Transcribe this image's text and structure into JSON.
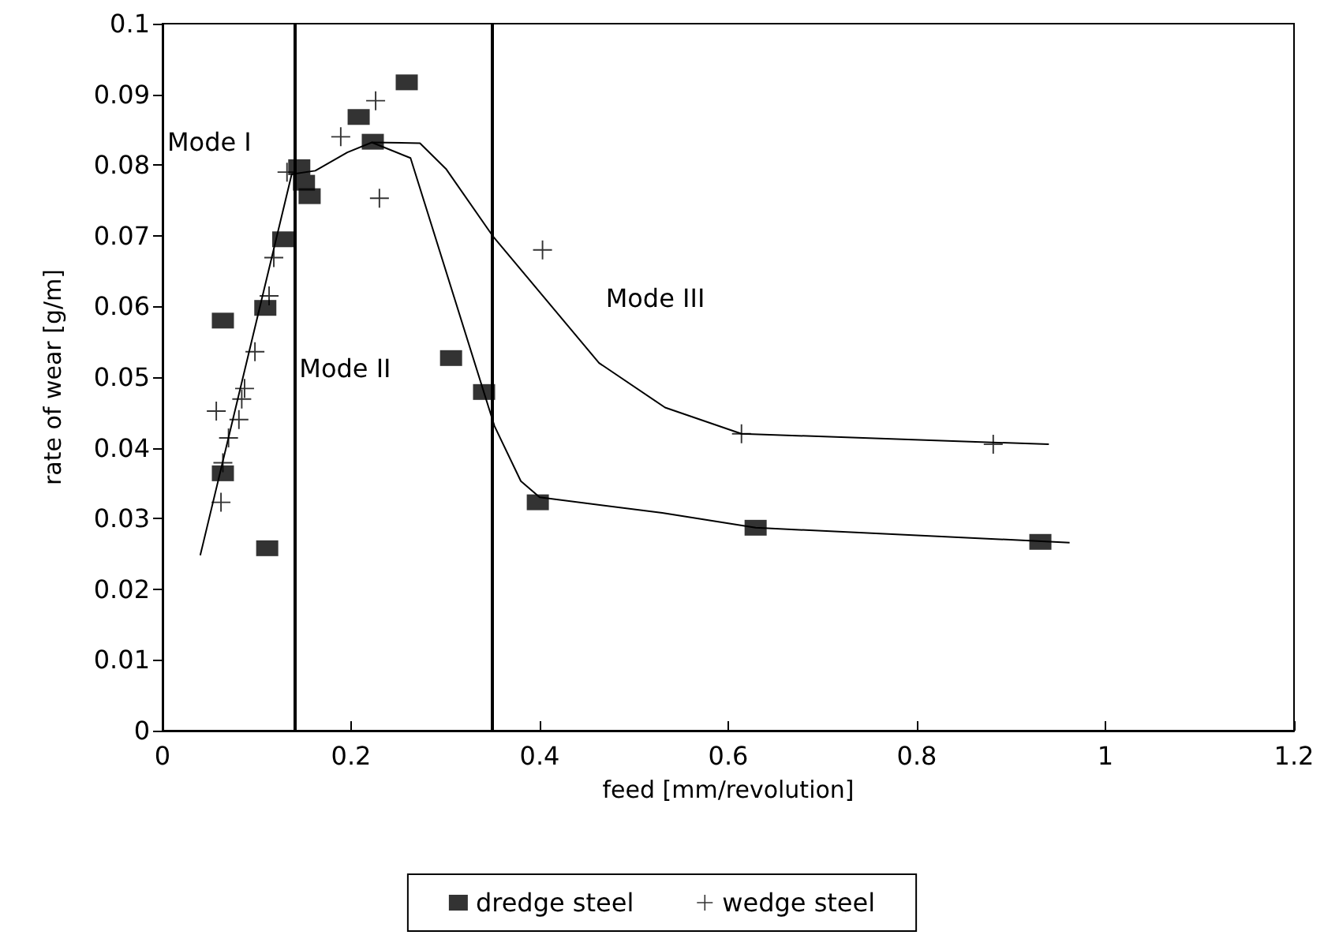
{
  "chart_data": {
    "type": "scatter",
    "xlabel": "feed [mm/revolution]",
    "ylabel": "rate of wear [g/m]",
    "xlim": [
      0,
      1.2
    ],
    "xticks": [
      0,
      0.2,
      0.4,
      0.6,
      0.8,
      1,
      1.2
    ],
    "ylim": [
      0,
      0.1
    ],
    "yticks": [
      0,
      0.01,
      0.02,
      0.03,
      0.04,
      0.05,
      0.06,
      0.07,
      0.08,
      0.09,
      0.1
    ],
    "grid": false,
    "legend": "bottom",
    "annotations": [
      "Mode I",
      "Mode II",
      "Mode III"
    ],
    "ref_lines": [
      {
        "axis": "x",
        "value": 0.14,
        "color": "#000000"
      },
      {
        "axis": "x",
        "value": 0.35,
        "color": "#000000"
      }
    ],
    "series": [
      {
        "name": "dredge steel",
        "color": "#000000",
        "marker": "square",
        "x": [
          0.064,
          0.064,
          0.111,
          0.109,
          0.128,
          0.145,
          0.15,
          0.156,
          0.208,
          0.223,
          0.259,
          0.306,
          0.341,
          0.398,
          0.629,
          0.931
        ],
        "values": [
          0.0364,
          0.058,
          0.0258,
          0.0598,
          0.0695,
          0.0797,
          0.0775,
          0.0756,
          0.0868,
          0.0833,
          0.0917,
          0.0527,
          0.0479,
          0.0323,
          0.0287,
          0.0267
        ]
      },
      {
        "name": "wedge steel",
        "color": "#000000",
        "marker": "cross",
        "x": [
          0.057,
          0.062,
          0.064,
          0.07,
          0.081,
          0.084,
          0.087,
          0.098,
          0.113,
          0.118,
          0.132,
          0.189,
          0.226,
          0.23,
          0.403,
          0.614,
          0.881
        ],
        "values": [
          0.0452,
          0.0323,
          0.0379,
          0.0414,
          0.044,
          0.0469,
          0.0484,
          0.0536,
          0.0615,
          0.0669,
          0.079,
          0.084,
          0.0891,
          0.0753,
          0.068,
          0.042,
          0.0405
        ]
      },
      {
        "type": "line",
        "color": "#000000",
        "marker": "none",
        "x": [
          0.04,
          0.137,
          0.162,
          0.196,
          0.222,
          0.263,
          0.352,
          0.38,
          0.4,
          0.53,
          0.629,
          0.962
        ],
        "values": [
          0.0248,
          0.0787,
          0.0792,
          0.0818,
          0.0832,
          0.081,
          0.0431,
          0.0353,
          0.033,
          0.0308,
          0.0287,
          0.0266
        ]
      },
      {
        "type": "line",
        "color": "#000000",
        "marker": "none",
        "x": [
          0.222,
          0.273,
          0.301,
          0.35,
          0.463,
          0.533,
          0.614,
          0.94
        ],
        "values": [
          0.0832,
          0.0831,
          0.0794,
          0.07,
          0.052,
          0.0457,
          0.042,
          0.0405
        ]
      }
    ]
  }
}
